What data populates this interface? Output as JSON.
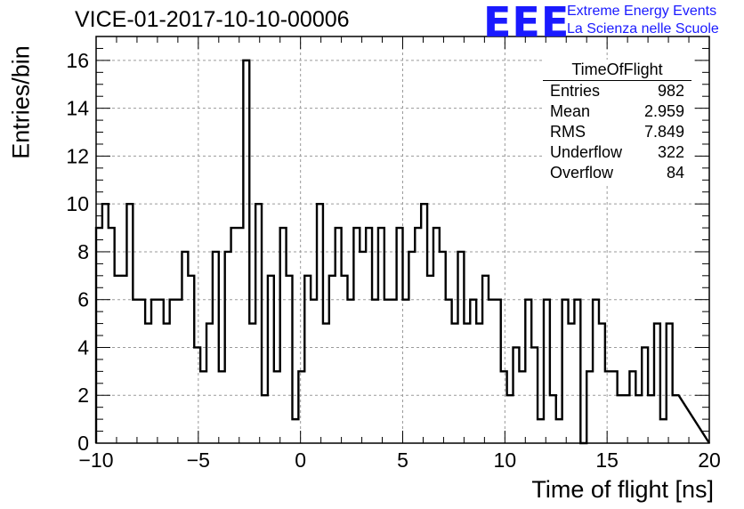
{
  "title": "VICE-01-2017-10-10-00006",
  "logo": {
    "mark": "EEE",
    "line1": "Extreme Energy Events",
    "line2": "La Scienza nelle Scuole"
  },
  "stats": {
    "name": "TimeOfFlight",
    "rows": [
      {
        "label": "Entries",
        "value": "982"
      },
      {
        "label": "Mean",
        "value": "2.959"
      },
      {
        "label": "RMS",
        "value": "7.849"
      },
      {
        "label": "Underflow",
        "value": "322"
      },
      {
        "label": "Overflow",
        "value": "84"
      }
    ]
  },
  "chart_data": {
    "type": "bar",
    "style": "step-histogram",
    "xlabel": "Time of flight [ns]",
    "ylabel": "Entries/bin",
    "xlim": [
      -10,
      20
    ],
    "ylim": [
      0,
      17
    ],
    "xticks": [
      -10,
      -5,
      0,
      5,
      10,
      15,
      20
    ],
    "yticks": [
      0,
      2,
      4,
      6,
      8,
      10,
      12,
      14,
      16
    ],
    "grid": true,
    "bin_width": 0.3,
    "values": [
      9,
      10,
      9,
      7,
      7,
      10,
      6,
      6,
      5,
      6,
      6,
      5,
      6,
      6,
      8,
      7,
      4,
      3,
      5,
      8,
      3,
      8,
      9,
      9,
      16,
      5,
      10,
      2,
      7,
      3,
      9,
      7,
      1,
      3,
      7,
      6,
      10,
      5,
      7,
      9,
      7,
      6,
      9,
      8,
      9,
      6,
      9,
      6,
      6,
      9,
      6,
      8,
      9,
      10,
      7,
      9,
      8,
      6,
      5,
      8,
      5,
      6,
      5,
      7,
      6,
      6,
      3,
      2,
      4,
      3,
      6,
      4,
      1,
      6,
      2,
      1,
      6,
      5,
      6,
      0,
      3,
      6,
      5,
      3,
      3,
      2,
      2,
      3,
      2,
      4,
      2,
      5,
      1,
      5,
      2
    ]
  },
  "colors": {
    "line": "#000000",
    "grid": "#9a9a9a",
    "logo": "#1a1aff"
  }
}
